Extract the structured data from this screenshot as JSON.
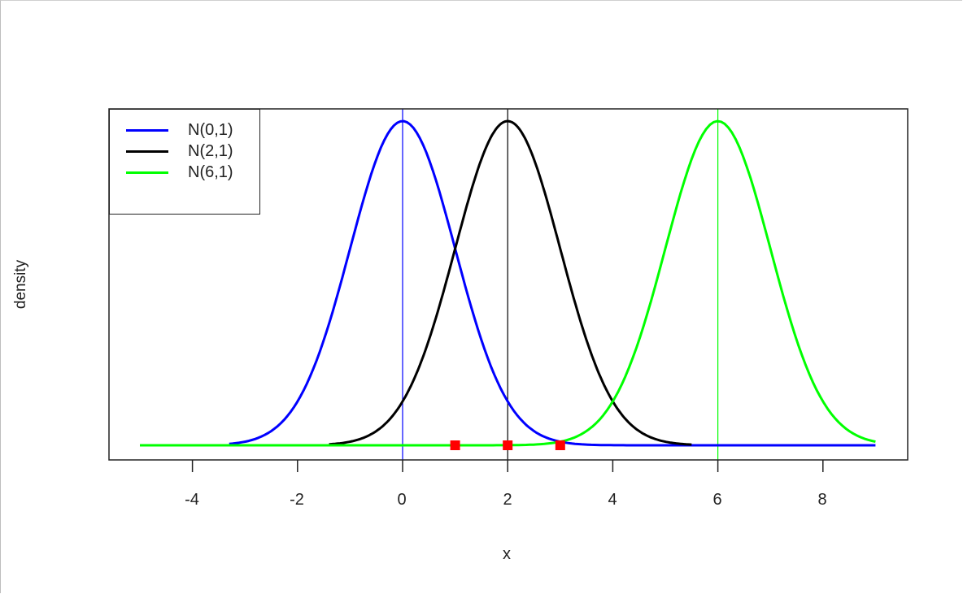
{
  "chart_data": {
    "type": "line",
    "title": "",
    "xlabel": "x",
    "ylabel": "density",
    "xlim": [
      -5.5,
      9.5
    ],
    "ylim": [
      -0.016,
      0.415
    ],
    "x_ticks": [
      -4,
      -2,
      0,
      2,
      4,
      6,
      8
    ],
    "x_tick_labels": [
      "-4",
      "-2",
      "0",
      "2",
      "4",
      "6",
      "8"
    ],
    "y_ticks": [],
    "grid": false,
    "legend_position": "topleft",
    "series": [
      {
        "name": "N(0,1)",
        "color": "#0000ff",
        "mean": 0,
        "sd": 1,
        "x_range": [
          -3.3,
          9
        ],
        "vline": 0
      },
      {
        "name": "N(2,1)",
        "color": "#000000",
        "mean": 2,
        "sd": 1,
        "x_range": [
          -1.4,
          5.5
        ],
        "vline": 2
      },
      {
        "name": "N(6,1)",
        "color": "#00ff00",
        "mean": 6,
        "sd": 1,
        "x_range": [
          -5,
          9
        ],
        "vline": 6
      }
    ],
    "points": {
      "color": "#ff0000",
      "shape": "square",
      "x": [
        1,
        2,
        3
      ],
      "y": [
        0,
        0,
        0
      ]
    }
  },
  "legend": {
    "items": [
      {
        "label": "N(0,1)",
        "color": "#0000ff"
      },
      {
        "label": "N(2,1)",
        "color": "#000000"
      },
      {
        "label": "N(6,1)",
        "color": "#00ff00"
      }
    ]
  },
  "axes": {
    "xlabel": "x",
    "ylabel": "density",
    "ticks": [
      "-4",
      "-2",
      "0",
      "2",
      "4",
      "6",
      "8"
    ]
  }
}
